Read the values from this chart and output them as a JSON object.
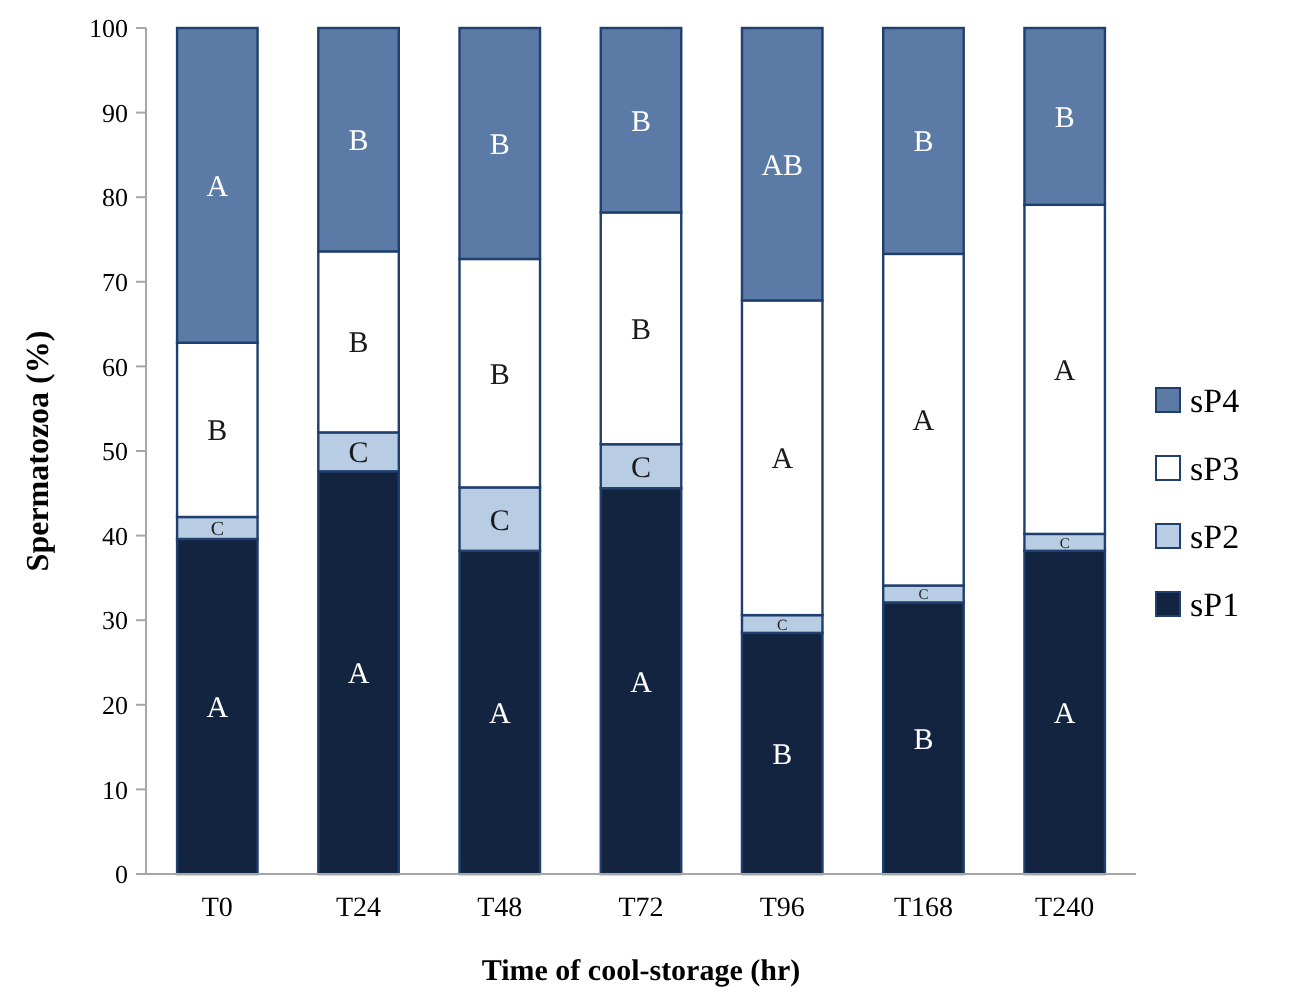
{
  "chart_data": {
    "type": "bar",
    "stacked": true,
    "xlabel": "Time of cool-storage (hr)",
    "ylabel": "Spermatozoa (%)",
    "categories": [
      "T0",
      "T24",
      "T48",
      "T72",
      "T96",
      "T168",
      "T240"
    ],
    "ylim": [
      0,
      100
    ],
    "yticks": [
      0,
      10,
      20,
      30,
      40,
      50,
      60,
      70,
      80,
      90,
      100
    ],
    "grid": false,
    "legend": "right",
    "series": [
      {
        "name": "sP1",
        "color": "#12243f",
        "values": [
          39.6,
          47.6,
          38.2,
          45.6,
          28.5,
          32.1,
          38.2
        ],
        "value_labels": [
          "A",
          "A",
          "A",
          "A",
          "B",
          "B",
          "A"
        ]
      },
      {
        "name": "sP2",
        "color": "#b8cce4",
        "values": [
          2.6,
          4.6,
          7.5,
          5.2,
          2.1,
          2.0,
          2.0
        ],
        "value_labels": [
          "C",
          "C",
          "C",
          "C",
          "C",
          "C",
          "C"
        ]
      },
      {
        "name": "sP3",
        "color": "#ffffff",
        "values": [
          20.6,
          21.4,
          27.0,
          27.4,
          37.2,
          39.2,
          38.9
        ],
        "value_labels": [
          "B",
          "B",
          "B",
          "B",
          "A",
          "A",
          "A"
        ]
      },
      {
        "name": "sP4",
        "color": "#5b7ba6",
        "values": [
          37.2,
          26.4,
          27.3,
          21.8,
          32.2,
          26.7,
          20.9
        ],
        "value_labels": [
          "A",
          "B",
          "B",
          "B",
          "AB",
          "B",
          "B"
        ]
      }
    ]
  }
}
